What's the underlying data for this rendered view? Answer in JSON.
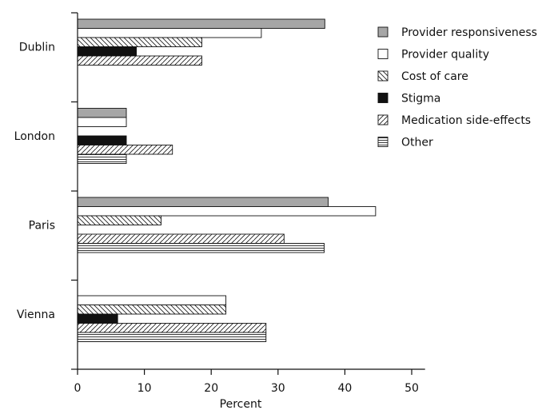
{
  "chart_data": {
    "type": "bar",
    "orientation": "horizontal",
    "title": "",
    "xlabel": "Percent",
    "ylabel": "",
    "xlim": [
      0,
      52
    ],
    "xticks": [
      0,
      10,
      20,
      30,
      40,
      50
    ],
    "grid": false,
    "legend_position": "top-right",
    "categories": [
      "Dublin",
      "London",
      "Paris",
      "Vienna"
    ],
    "series": [
      {
        "name": "Provider responsiveness",
        "pattern": "solid-gray",
        "color": "#a6a6a6",
        "values": [
          37,
          7.3,
          37.5,
          0
        ]
      },
      {
        "name": "Provider quality",
        "pattern": "white",
        "color": "#ffffff",
        "values": [
          27.5,
          7.3,
          44.6,
          22.2
        ]
      },
      {
        "name": "Cost of care",
        "pattern": "diagonal-back",
        "color": "#ffffff",
        "values": [
          18.6,
          0,
          12.5,
          22.2
        ]
      },
      {
        "name": "Stigma",
        "pattern": "solid-black",
        "color": "#111111",
        "values": [
          8.8,
          7.3,
          0,
          6.0
        ]
      },
      {
        "name": "Medication side-effects",
        "pattern": "diagonal-forward",
        "color": "#ffffff",
        "values": [
          18.6,
          14.2,
          30.9,
          28.2
        ]
      },
      {
        "name": "Other",
        "pattern": "horizontal",
        "color": "#ffffff",
        "values": [
          0,
          7.3,
          36.9,
          28.2
        ]
      }
    ]
  }
}
